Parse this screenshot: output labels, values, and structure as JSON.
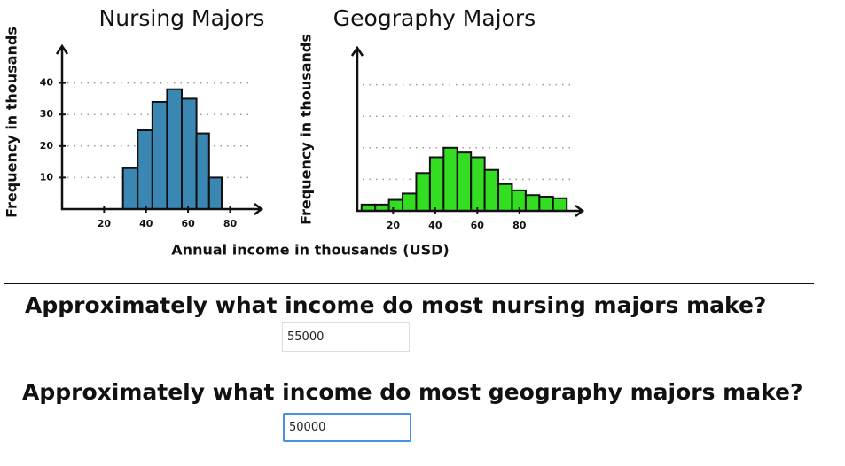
{
  "chart_data": [
    {
      "type": "histogram",
      "title": "Nursing Majors",
      "ylabel": "Frequency in thousands",
      "xlabel": "Annual income in thousands (USD)",
      "bins": [
        29,
        36,
        43,
        50,
        57,
        64,
        70,
        76
      ],
      "counts": [
        13,
        25,
        34,
        38,
        35,
        24,
        10
      ],
      "color": "#3b87b3",
      "xlim": [
        0,
        95
      ],
      "ylim": [
        0,
        50
      ],
      "xticks": [
        20,
        40,
        60,
        80
      ],
      "yticks": [
        10,
        20,
        30,
        40
      ],
      "grid": true
    },
    {
      "type": "histogram",
      "title": "Geography Majors",
      "ylabel": "Frequency in thousands",
      "bins": [
        5,
        11.5,
        18,
        24.5,
        31,
        37.5,
        44,
        50.5,
        57,
        63.5,
        70,
        76.5,
        83,
        89.5,
        96,
        102.5
      ],
      "counts": [
        2,
        2,
        3.5,
        5.5,
        12,
        17,
        20,
        18.5,
        17,
        13,
        8.5,
        6.5,
        5,
        4.5,
        4
      ],
      "color": "#33dd22",
      "xlim": [
        3,
        110
      ],
      "ylim": [
        0,
        50
      ],
      "xticks": [
        20,
        40,
        60,
        80
      ],
      "gridlines": [
        10,
        20,
        30,
        40
      ],
      "grid": true
    }
  ],
  "questions": [
    {
      "text": "Approximately what income do most nursing majors make?",
      "answer": "55000"
    },
    {
      "text": "Approximately what income do most geography majors make?",
      "answer": "50000"
    }
  ]
}
